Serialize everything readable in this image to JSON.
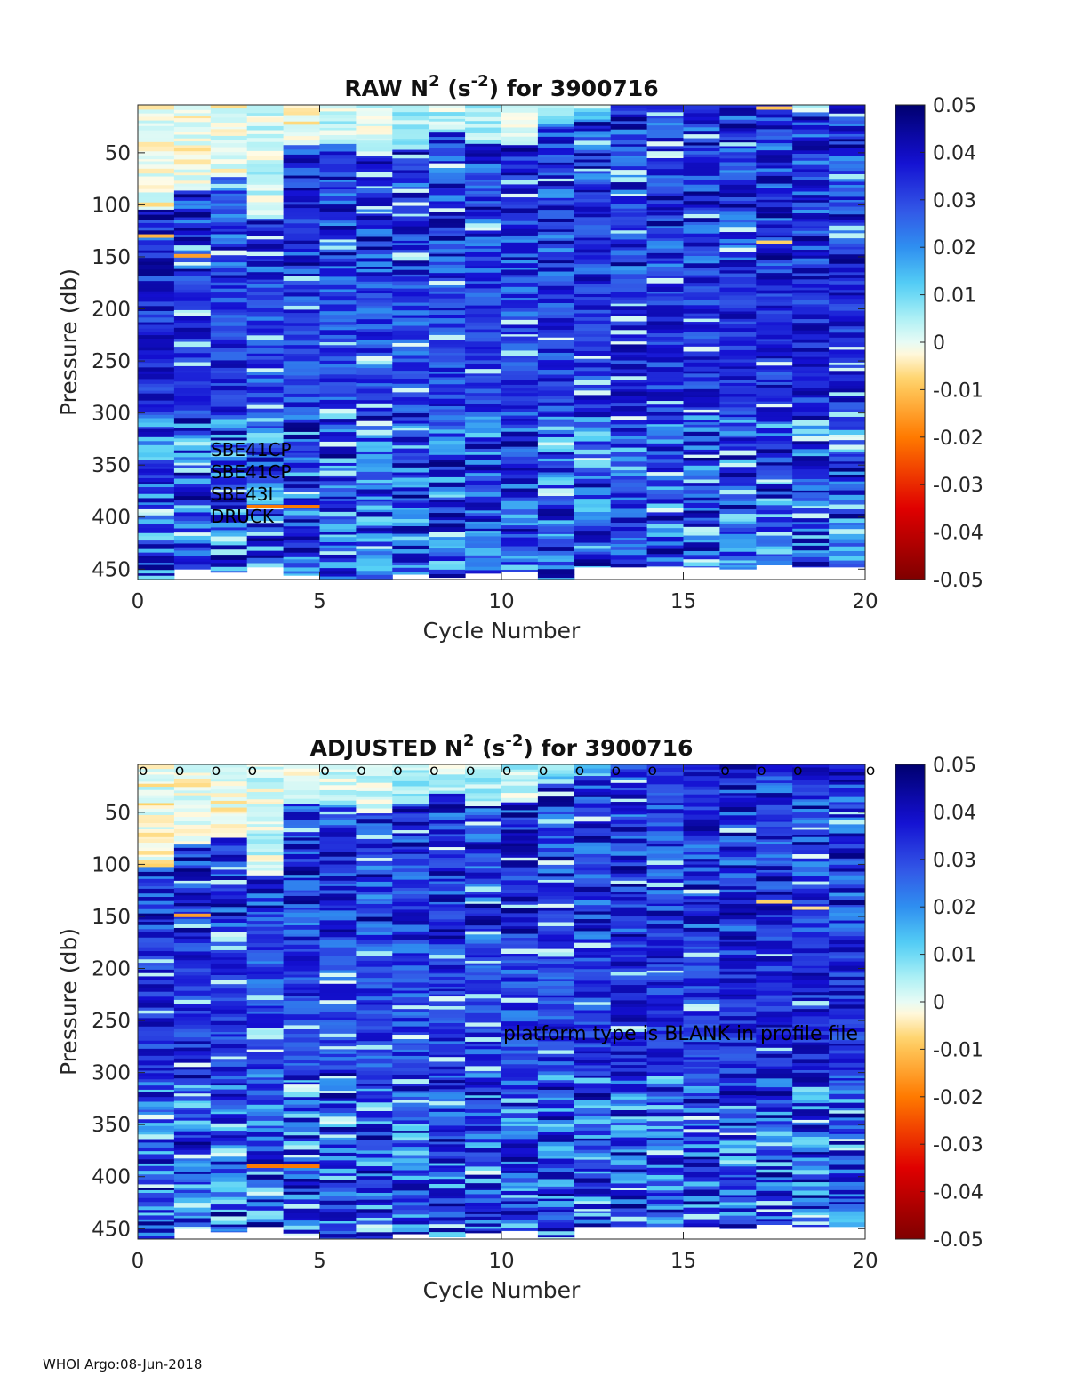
{
  "footer": "WHOI Argo:08-Jun-2018",
  "colormap_name": "blue-cyan-white-orange-red diverging (reversed jet)",
  "colormap_stops": [
    "#7f0000",
    "#e00000",
    "#ff7a00",
    "#ffd266",
    "#fffbe6",
    "#e7fbf5",
    "#aef0f5",
    "#55d0f5",
    "#2f8ff0",
    "#3255e6",
    "#1410d2",
    "#00006e"
  ],
  "chart_data": [
    {
      "type": "heatmap",
      "panel": "raw",
      "title": {
        "main": "RAW N",
        "sup1": "2",
        "mid": " (s",
        "sup2": "-2",
        "end": ") for 3900716"
      },
      "xlabel": "Cycle Number",
      "ylabel": "Pressure (db)",
      "xlim": [
        0,
        20
      ],
      "ylim": [
        460,
        4
      ],
      "xticks": [
        "0",
        "5",
        "10",
        "15",
        "20"
      ],
      "yticks": [
        "50",
        "100",
        "150",
        "200",
        "250",
        "300",
        "350",
        "400",
        "450"
      ],
      "colorbar": {
        "range": [
          -0.05,
          0.05
        ],
        "ticks": [
          "0.05",
          "0.04",
          "0.03",
          "0.02",
          "0.01",
          "0",
          "-0.01",
          "-0.02",
          "-0.03",
          "-0.04",
          "-0.05"
        ]
      },
      "sensor_labels": [
        "SBE41CP",
        "SBE41CP",
        "SBE43I",
        "DRUCK"
      ],
      "cycles": 20,
      "profile_max_pressure": [
        460,
        450,
        453,
        448,
        456,
        460,
        460,
        455,
        458,
        454,
        452,
        460,
        448,
        448,
        448,
        448,
        450,
        446,
        448,
        448
      ],
      "columns_summary": [
        {
          "cycle": 1,
          "surface_to_db": 100,
          "surface_value": -0.002,
          "deep_value": 0.045
        },
        {
          "cycle": 2,
          "surface_to_db": 80,
          "surface_value": -0.001,
          "deep_value": 0.044
        },
        {
          "cycle": 3,
          "surface_to_db": 70,
          "surface_value": -0.001,
          "deep_value": 0.043
        },
        {
          "cycle": 4,
          "surface_to_db": 110,
          "surface_value": 0.002,
          "deep_value": 0.04
        },
        {
          "cycle": 5,
          "surface_to_db": 40,
          "surface_value": -0.002,
          "deep_value": 0.042
        },
        {
          "cycle": 6,
          "surface_to_db": 40,
          "surface_value": 0.003,
          "deep_value": 0.04
        },
        {
          "cycle": 7,
          "surface_to_db": 50,
          "surface_value": 0.002,
          "deep_value": 0.04
        },
        {
          "cycle": 8,
          "surface_to_db": 40,
          "surface_value": 0.006,
          "deep_value": 0.04
        },
        {
          "cycle": 9,
          "surface_to_db": 30,
          "surface_value": 0.004,
          "deep_value": 0.042
        },
        {
          "cycle": 10,
          "surface_to_db": 40,
          "surface_value": 0.005,
          "deep_value": 0.041
        },
        {
          "cycle": 11,
          "surface_to_db": 40,
          "surface_value": 0.003,
          "deep_value": 0.04
        },
        {
          "cycle": 12,
          "surface_to_db": 20,
          "surface_value": 0.01,
          "deep_value": 0.042
        },
        {
          "cycle": 13,
          "surface_to_db": 15,
          "surface_value": 0.012,
          "deep_value": 0.043
        },
        {
          "cycle": 14,
          "surface_to_db": 10,
          "surface_value": 0.03,
          "deep_value": 0.045
        },
        {
          "cycle": 15,
          "surface_to_db": 10,
          "surface_value": 0.035,
          "deep_value": 0.044
        },
        {
          "cycle": 16,
          "surface_to_db": 10,
          "surface_value": 0.035,
          "deep_value": 0.043
        },
        {
          "cycle": 17,
          "surface_to_db": 10,
          "surface_value": 0.04,
          "deep_value": 0.044
        },
        {
          "cycle": 18,
          "surface_to_db": 10,
          "surface_value": 0.035,
          "deep_value": 0.045
        },
        {
          "cycle": 19,
          "surface_to_db": 10,
          "surface_value": 0.04,
          "deep_value": 0.045
        },
        {
          "cycle": 20,
          "surface_to_db": 10,
          "surface_value": 0.04,
          "deep_value": 0.045
        }
      ],
      "negative_streaks": [
        {
          "cycle": 1,
          "pressure": 130,
          "value": -0.012
        },
        {
          "cycle": 2,
          "pressure": 149,
          "value": -0.015
        },
        {
          "cycle": 4,
          "pressure": 390,
          "value": -0.02
        },
        {
          "cycle": 5,
          "pressure": 390,
          "value": -0.02
        },
        {
          "cycle": 18,
          "pressure": 7,
          "value": -0.01
        },
        {
          "cycle": 18,
          "pressure": 136,
          "value": -0.008
        }
      ]
    },
    {
      "type": "heatmap",
      "panel": "adjusted",
      "title": {
        "main": "ADJUSTED N",
        "sup1": "2",
        "mid": " (s",
        "sup2": "-2",
        "end": ") for 3900716"
      },
      "xlabel": "Cycle Number",
      "ylabel": "Pressure (db)",
      "xlim": [
        0,
        20
      ],
      "ylim": [
        460,
        4
      ],
      "xticks": [
        "0",
        "5",
        "10",
        "15",
        "20"
      ],
      "yticks": [
        "50",
        "100",
        "150",
        "200",
        "250",
        "300",
        "350",
        "400",
        "450"
      ],
      "colorbar": {
        "range": [
          -0.05,
          0.05
        ],
        "ticks": [
          "0.05",
          "0.04",
          "0.03",
          "0.02",
          "0.01",
          "0",
          "-0.01",
          "-0.02",
          "-0.03",
          "-0.04",
          "-0.05"
        ]
      },
      "annotation": "platform type is BLANK in profile file",
      "qc_marker": "o",
      "qc_marker_cycles": [
        0.15,
        1.15,
        2.15,
        3.15,
        5.15,
        6.15,
        7.15,
        8.15,
        9.15,
        10.15,
        11.15,
        12.15,
        13.15,
        14.15,
        16.15,
        17.15,
        18.15,
        20.15
      ],
      "cycles": 20,
      "profile_max_pressure": [
        460,
        450,
        453,
        448,
        456,
        460,
        460,
        455,
        458,
        454,
        452,
        460,
        448,
        448,
        448,
        448,
        450,
        446,
        448,
        448
      ],
      "negative_streaks": [
        {
          "cycle": 2,
          "pressure": 149,
          "value": -0.015
        },
        {
          "cycle": 4,
          "pressure": 390,
          "value": -0.02
        },
        {
          "cycle": 5,
          "pressure": 390,
          "value": -0.02
        },
        {
          "cycle": 18,
          "pressure": 136,
          "value": -0.008
        },
        {
          "cycle": 19,
          "pressure": 142,
          "value": -0.006
        }
      ]
    }
  ]
}
